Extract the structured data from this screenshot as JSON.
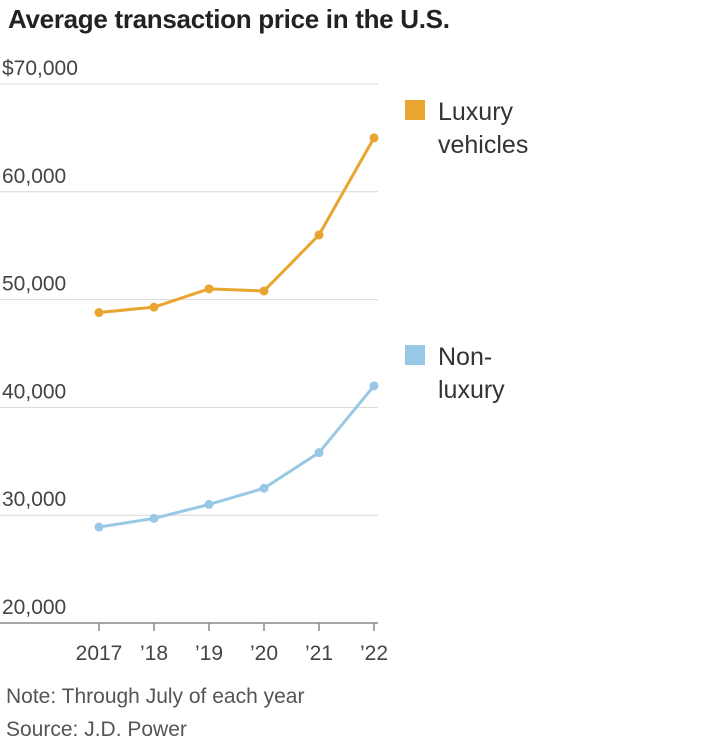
{
  "chart_data": {
    "type": "line",
    "title": "Average transaction price in the U.S.",
    "categories": [
      "2017",
      "’18",
      "’19",
      "’20",
      "’21",
      "’22"
    ],
    "ylim": [
      20000,
      70000
    ],
    "yticks": [
      20000,
      30000,
      40000,
      50000,
      60000,
      70000
    ],
    "ytick_labels": [
      "20,000",
      "30,000",
      "40,000",
      "50,000",
      "60,000",
      "$70,000"
    ],
    "series": [
      {
        "name": "Luxury vehicles",
        "legend_lines": [
          "Luxury",
          "vehicles"
        ],
        "color": "#e8a530",
        "values": [
          48800,
          49300,
          51000,
          50800,
          56000,
          65000
        ]
      },
      {
        "name": "Non-luxury",
        "legend_lines": [
          "Non-",
          "luxury"
        ],
        "color": "#98c8e6",
        "values": [
          28900,
          29700,
          31000,
          32500,
          35800,
          42000
        ]
      }
    ],
    "grid": true,
    "legend_placement": "right"
  },
  "notes": {
    "note": "Note: Through July of each year",
    "source": "Source: J.D. Power"
  }
}
